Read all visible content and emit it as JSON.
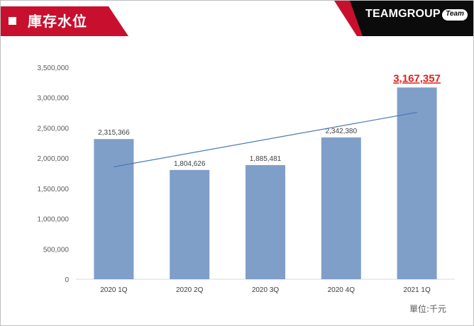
{
  "header": {
    "title": "庫存水位",
    "brand": "TEAMGROUP",
    "badge": "Team"
  },
  "unit_label": "單位:千元",
  "colors": {
    "accent": "#c8102e",
    "bar": "#7f9fc9",
    "trend": "#4a7ab5",
    "highlight_label": "#e02020"
  },
  "chart_data": {
    "type": "bar",
    "categories": [
      "2020 1Q",
      "2020 2Q",
      "2020 3Q",
      "2020 4Q",
      "2021 1Q"
    ],
    "values": [
      2315366,
      1804626,
      1885481,
      2342380,
      3167357
    ],
    "value_labels": [
      "2,315,366",
      "1,804,626",
      "1,885,481",
      "2,342,380",
      "3,167,357"
    ],
    "highlight_index": 4,
    "ylim": [
      0,
      3500000
    ],
    "yticks": [
      0,
      500000,
      1000000,
      1500000,
      2000000,
      2500000,
      3000000,
      3500000
    ],
    "ytick_labels": [
      "0",
      "500,000",
      "1,000,000",
      "1,500,000",
      "2,000,000",
      "2,500,000",
      "3,000,000",
      "3,500,000"
    ],
    "trendline": {
      "type": "linear",
      "start": 1857000,
      "end": 2757000
    },
    "grid": false,
    "legend": "none"
  }
}
